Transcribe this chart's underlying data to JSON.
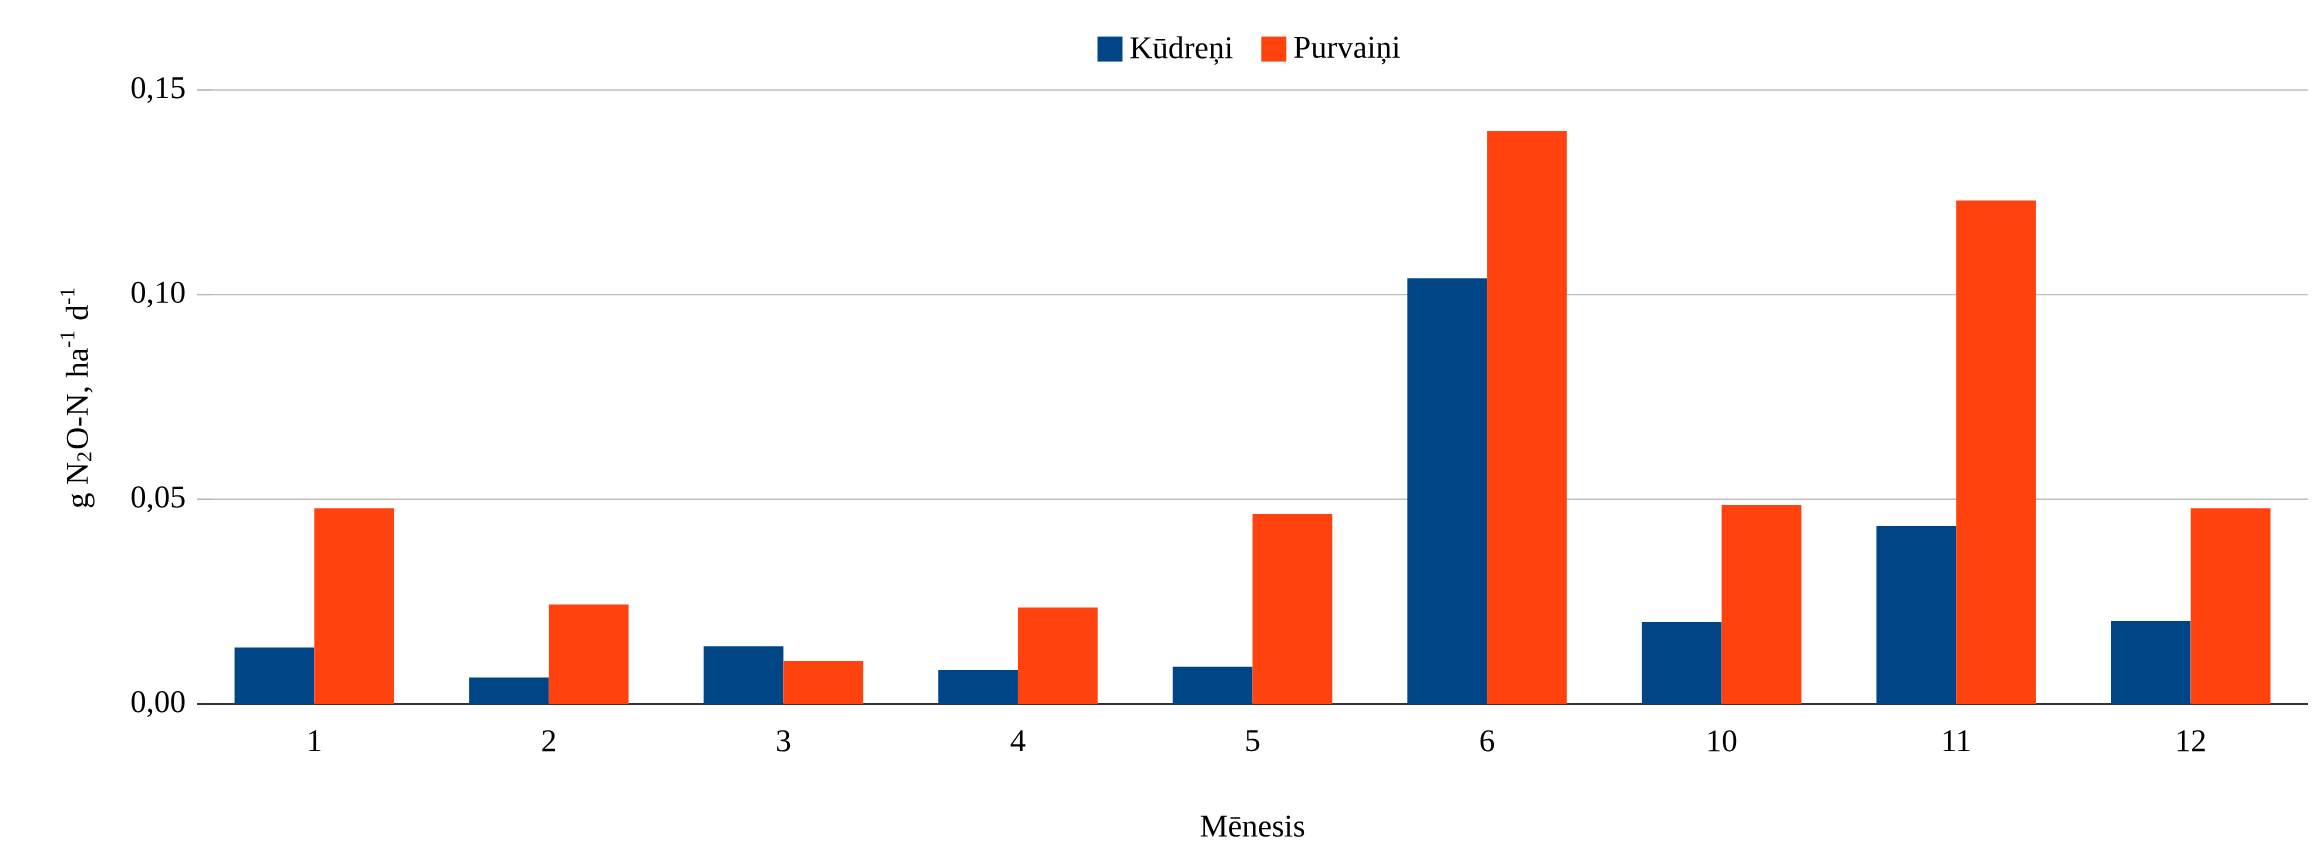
{
  "chart_data": {
    "type": "bar",
    "xlabel": "Mēnesis",
    "ylabel": "g N$_{2}$O-N, ha$^{-1}$ d$^{-1}$",
    "categories": [
      "1",
      "2",
      "3",
      "4",
      "5",
      "6",
      "10",
      "11",
      "12"
    ],
    "series": [
      {
        "name": "Kūdreņi",
        "color": "#004586",
        "values": [
          0.0138,
          0.0065,
          0.0141,
          0.0083,
          0.0091,
          0.104,
          0.02,
          0.0435,
          0.0203
        ]
      },
      {
        "name": "Purvaiņi",
        "color": "#ff420e",
        "values": [
          0.0478,
          0.0243,
          0.0105,
          0.0236,
          0.0464,
          0.14,
          0.0486,
          0.123,
          0.0478
        ]
      }
    ],
    "ylim": [
      0,
      0.15
    ],
    "yticks": [
      {
        "value": 0,
        "label": "0,00"
      },
      {
        "value": 0.05,
        "label": "0,05"
      },
      {
        "value": 0.1,
        "label": "0,10"
      },
      {
        "value": 0.15,
        "label": "0,15"
      }
    ],
    "grid": "y",
    "legend": "top"
  }
}
